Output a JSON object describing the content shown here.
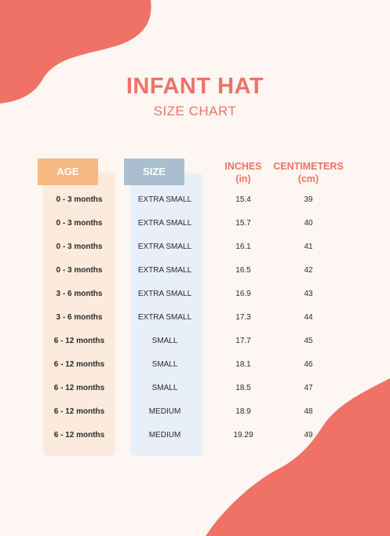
{
  "header": {
    "title": "INFANT HAT",
    "subtitle": "SIZE CHART"
  },
  "colors": {
    "accent": "#ee7266",
    "age_header": "#f6b981",
    "size_header": "#a9bfcf",
    "age_column": "#fcebdc",
    "size_column": "#e8eff8",
    "background": "#fdf6f3"
  },
  "table": {
    "columns": {
      "age": "AGE",
      "size": "SIZE",
      "inches_line1": "INCHES",
      "inches_line2": "(in)",
      "cm_line1": "CENTIMETERS",
      "cm_line2": "(cm)"
    },
    "rows": [
      {
        "age": "0 - 3 months",
        "size": "EXTRA SMALL",
        "inches": "15.4",
        "cm": "39"
      },
      {
        "age": "0 - 3 months",
        "size": "EXTRA SMALL",
        "inches": "15.7",
        "cm": "40"
      },
      {
        "age": "0 - 3 months",
        "size": "EXTRA SMALL",
        "inches": "16.1",
        "cm": "41"
      },
      {
        "age": "0 - 3 months",
        "size": "EXTRA SMALL",
        "inches": "16.5",
        "cm": "42"
      },
      {
        "age": "3 - 6 months",
        "size": "EXTRA SMALL",
        "inches": "16.9",
        "cm": "43"
      },
      {
        "age": "3 - 6 months",
        "size": "EXTRA SMALL",
        "inches": "17.3",
        "cm": "44"
      },
      {
        "age": "6 - 12 months",
        "size": "SMALL",
        "inches": "17.7",
        "cm": "45"
      },
      {
        "age": "6 - 12 months",
        "size": "SMALL",
        "inches": "18.1",
        "cm": "46"
      },
      {
        "age": "6 - 12 months",
        "size": "SMALL",
        "inches": "18.5",
        "cm": "47"
      },
      {
        "age": "6 - 12 months",
        "size": "MEDIUM",
        "inches": "18.9",
        "cm": "48"
      },
      {
        "age": "6 - 12 months",
        "size": "MEDIUM",
        "inches": "19.29",
        "cm": "49"
      }
    ]
  }
}
